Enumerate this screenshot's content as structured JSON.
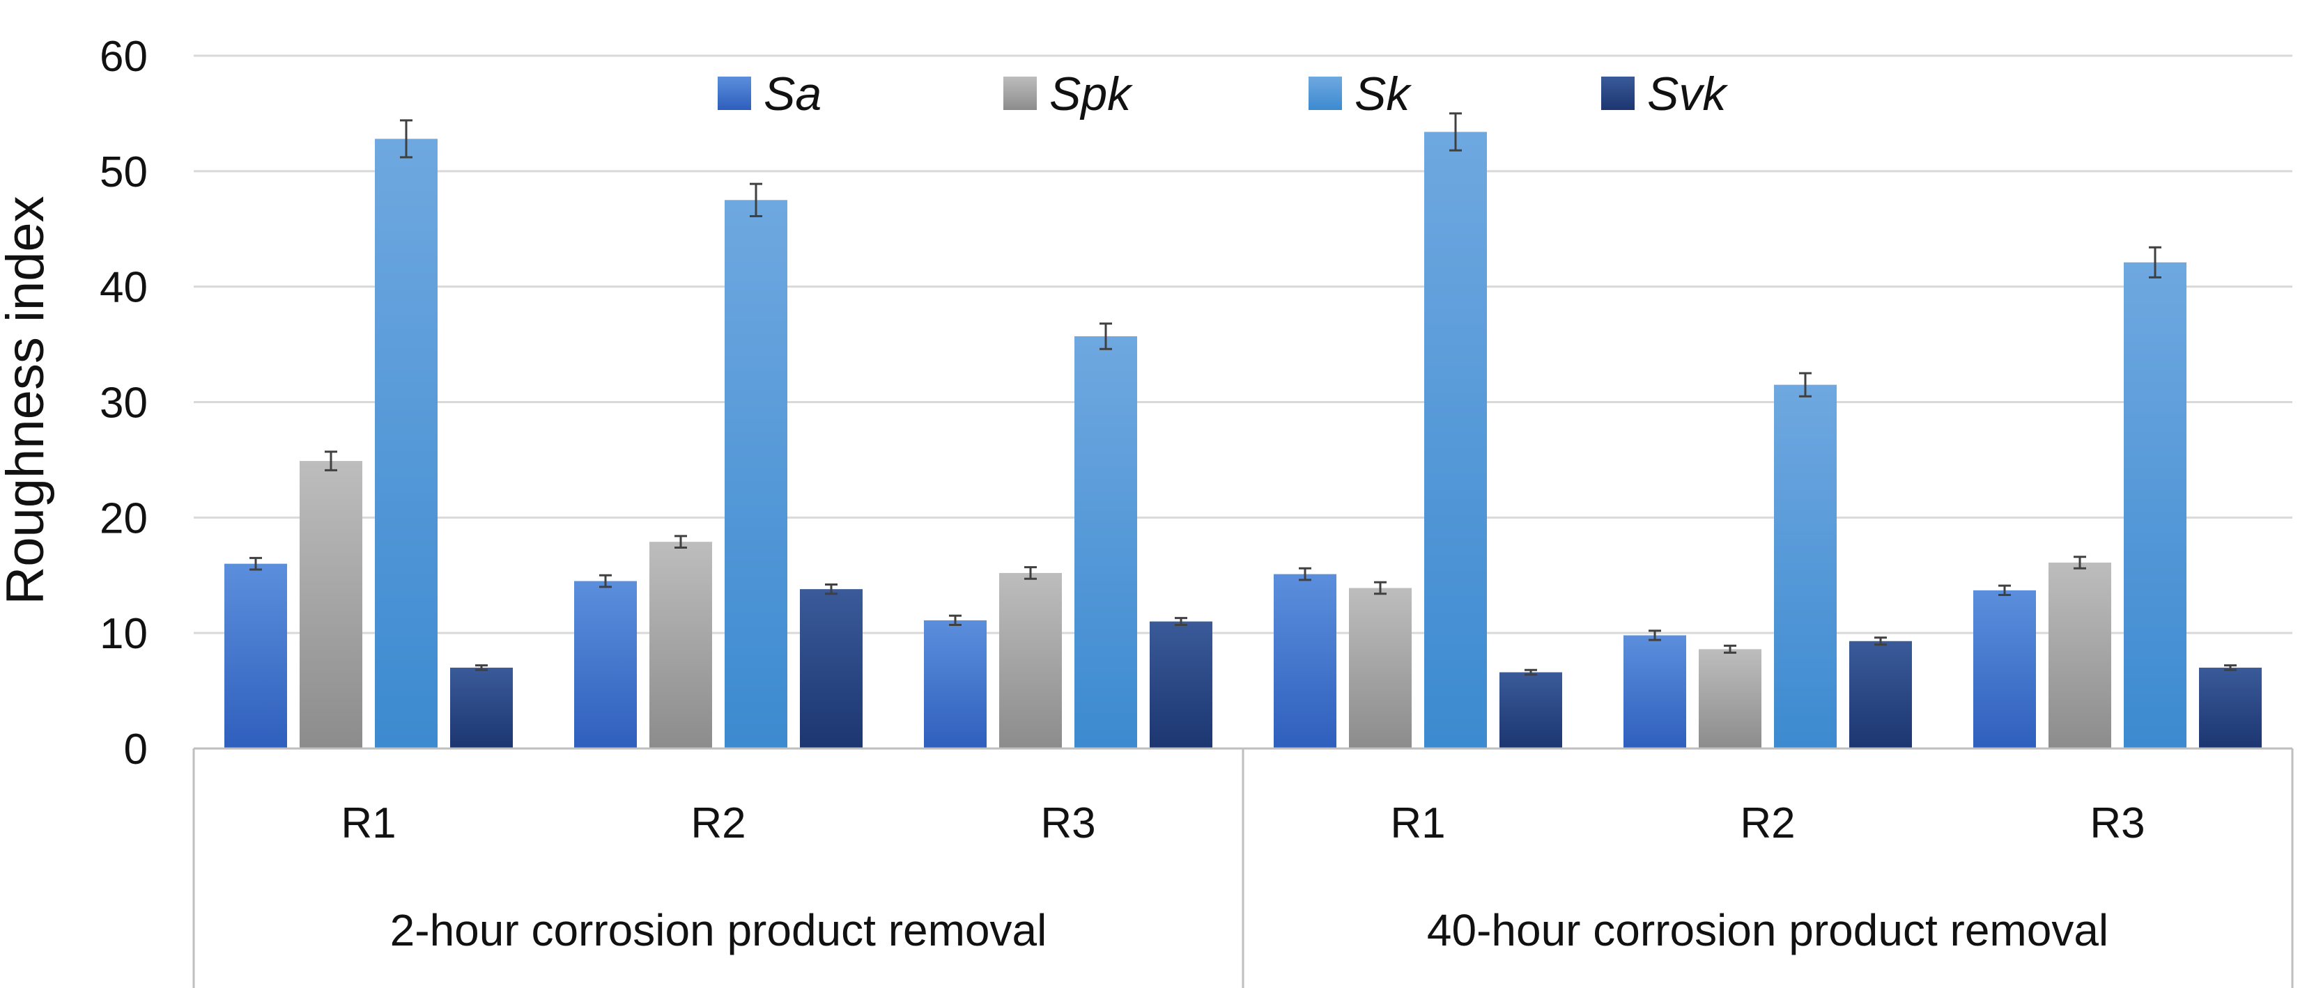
{
  "chart_data": {
    "type": "bar",
    "title": "",
    "xlabel": "",
    "ylabel": "Roughness index",
    "ylim": [
      0,
      60
    ],
    "yticks": [
      0,
      10,
      20,
      30,
      40,
      50,
      60
    ],
    "grid": true,
    "legend_position": "top",
    "groups": [
      {
        "label": "2-hour corrosion product removal",
        "categories": [
          "R1",
          "R2",
          "R3"
        ]
      },
      {
        "label": "40-hour corrosion product removal",
        "categories": [
          "R1",
          "R2",
          "R3"
        ]
      }
    ],
    "series": [
      {
        "name": "Sa",
        "color_top": "#5b8fdc",
        "color_bottom": "#2f5fbd",
        "values": [
          16.0,
          14.5,
          11.1,
          15.1,
          9.8,
          13.7
        ],
        "errors": [
          0.5,
          0.5,
          0.4,
          0.5,
          0.4,
          0.4
        ]
      },
      {
        "name": "Spk",
        "color_top": "#bdbdbd",
        "color_bottom": "#8c8c8c",
        "values": [
          24.9,
          17.9,
          15.2,
          13.9,
          8.6,
          16.1
        ],
        "errors": [
          0.8,
          0.5,
          0.5,
          0.5,
          0.3,
          0.5
        ]
      },
      {
        "name": "Sk",
        "color_top": "#6fa8e0",
        "color_bottom": "#3c8ad0",
        "values": [
          52.8,
          47.5,
          35.7,
          53.4,
          31.5,
          42.1
        ],
        "errors": [
          1.6,
          1.4,
          1.1,
          1.6,
          1.0,
          1.3
        ]
      },
      {
        "name": "Svk",
        "color_top": "#3a5a99",
        "color_bottom": "#1c3670",
        "values": [
          7.0,
          13.8,
          11.0,
          6.6,
          9.3,
          7.0
        ],
        "errors": [
          0.2,
          0.4,
          0.3,
          0.2,
          0.3,
          0.2
        ]
      }
    ]
  }
}
